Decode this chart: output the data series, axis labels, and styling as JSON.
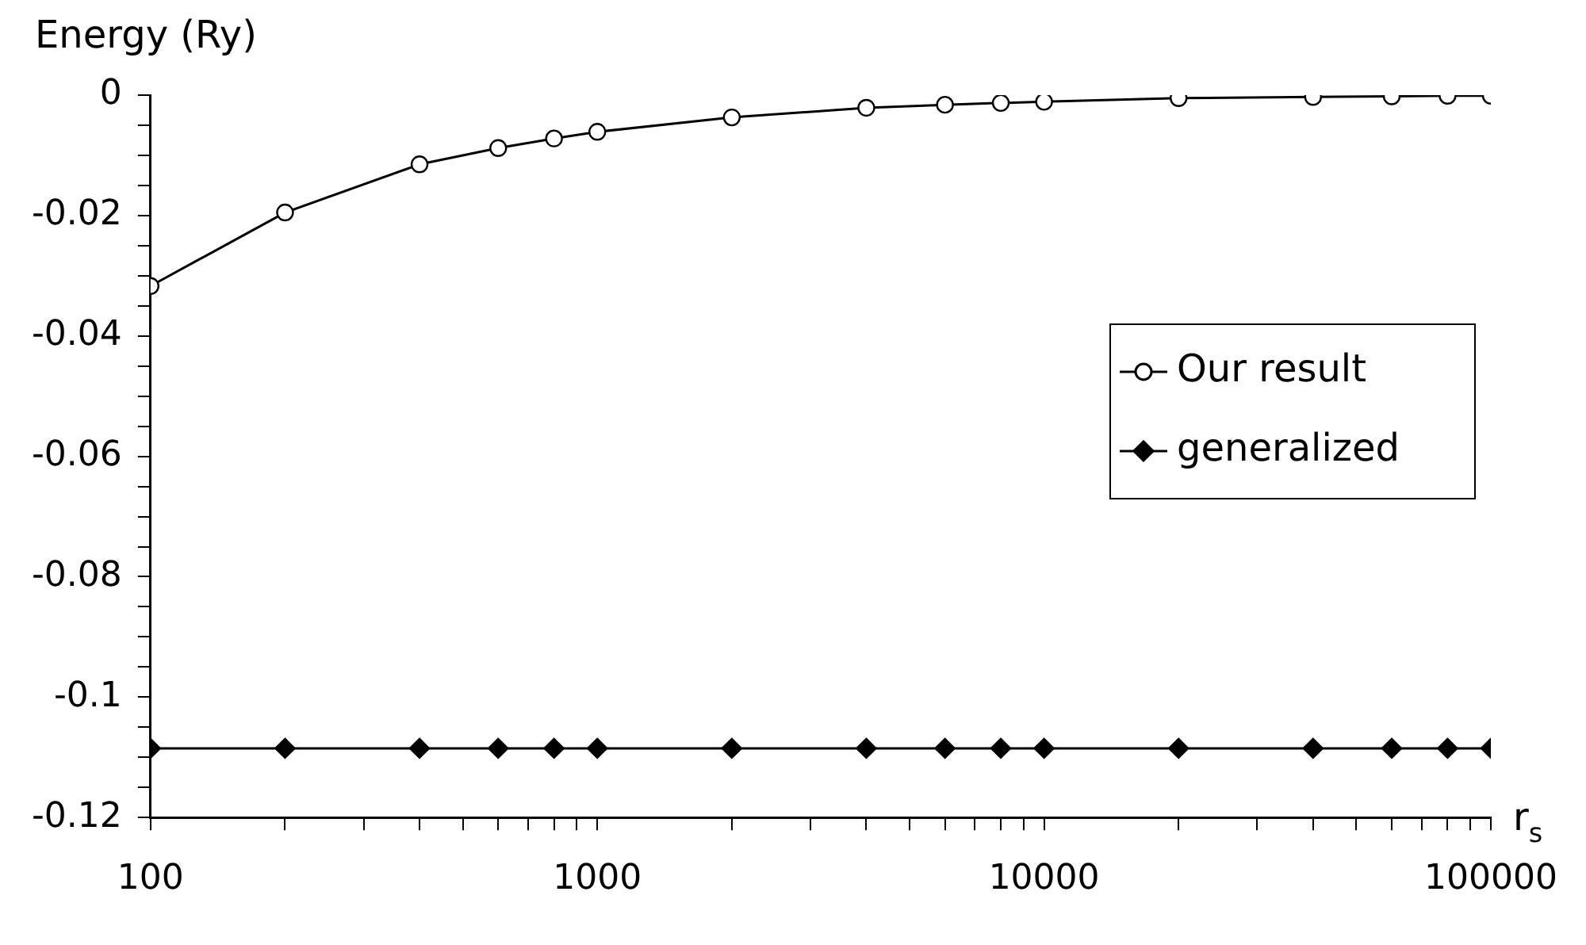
{
  "chart_data": {
    "type": "line",
    "ylabel": "Energy (Ry)",
    "xlabel": "r$_{s}$",
    "log": "x",
    "x": [
      100,
      200,
      400,
      600,
      800,
      1000,
      2000,
      4000,
      6000,
      8000,
      10000,
      20000,
      40000,
      60000,
      80000,
      100000
    ],
    "series": [
      {
        "name": "Our result",
        "color": "#000000",
        "marker": "circle",
        "values": [
          -0.0317,
          -0.0195,
          -0.0115,
          -0.0088,
          -0.0072,
          -0.0061,
          -0.0037,
          -0.0021,
          -0.0016,
          -0.0013,
          -0.0011,
          -0.0005,
          -0.0003,
          -0.0002,
          -0.0001,
          -0.0001
        ]
      },
      {
        "name": "generalized",
        "color": "#000000",
        "marker": "diamond",
        "values": [
          -0.1085,
          -0.1085,
          -0.1085,
          -0.1085,
          -0.1085,
          -0.1085,
          -0.1085,
          -0.1085,
          -0.1085,
          -0.1085,
          -0.1085,
          -0.1085,
          -0.1085,
          -0.1085,
          -0.1085,
          -0.1085
        ]
      }
    ],
    "xlim": [
      100,
      100000
    ],
    "xticks": [
      100,
      {
        "value": 200,
        "label": null
      },
      {
        "value": 300,
        "label": null
      },
      {
        "value": 400,
        "label": null
      },
      {
        "value": 500,
        "label": null
      },
      {
        "value": 600,
        "label": null
      },
      {
        "value": 700,
        "label": null
      },
      {
        "value": 800,
        "label": null
      },
      {
        "value": 900,
        "label": null
      },
      1000,
      {
        "value": 2000,
        "label": null
      },
      {
        "value": 3000,
        "label": null
      },
      {
        "value": 4000,
        "label": null
      },
      {
        "value": 5000,
        "label": null
      },
      {
        "value": 6000,
        "label": null
      },
      {
        "value": 7000,
        "label": null
      },
      {
        "value": 8000,
        "label": null
      },
      {
        "value": 9000,
        "label": null
      },
      10000,
      {
        "value": 20000,
        "label": null
      },
      {
        "value": 30000,
        "label": null
      },
      {
        "value": 40000,
        "label": null
      },
      {
        "value": 50000,
        "label": null
      },
      {
        "value": 60000,
        "label": null
      },
      {
        "value": 70000,
        "label": null
      },
      {
        "value": 80000,
        "label": null
      },
      {
        "value": 90000,
        "label": null
      },
      100000
    ],
    "ylim": [
      -0.12,
      0
    ],
    "yticks": [
      -0.12,
      {
        "value": -0.115,
        "label": null
      },
      {
        "value": -0.11,
        "label": null
      },
      {
        "value": -0.105,
        "label": null
      },
      -0.1,
      {
        "value": -0.095,
        "label": null
      },
      {
        "value": -0.09,
        "label": null
      },
      {
        "value": -0.085,
        "label": null
      },
      -0.08,
      {
        "value": -0.075,
        "label": null
      },
      {
        "value": -0.07,
        "label": null
      },
      {
        "value": -0.065,
        "label": null
      },
      -0.06,
      {
        "value": -0.055,
        "label": null
      },
      {
        "value": -0.05,
        "label": null
      },
      {
        "value": -0.045,
        "label": null
      },
      -0.04,
      {
        "value": -0.035,
        "label": null
      },
      {
        "value": -0.03,
        "label": null
      },
      {
        "value": -0.025,
        "label": null
      },
      -0.02,
      {
        "value": -0.015,
        "label": null
      },
      {
        "value": -0.01,
        "label": null
      },
      {
        "value": -0.005,
        "label": null
      },
      0
    ],
    "grid": false,
    "legend": "right",
    "line_style": "solid"
  }
}
